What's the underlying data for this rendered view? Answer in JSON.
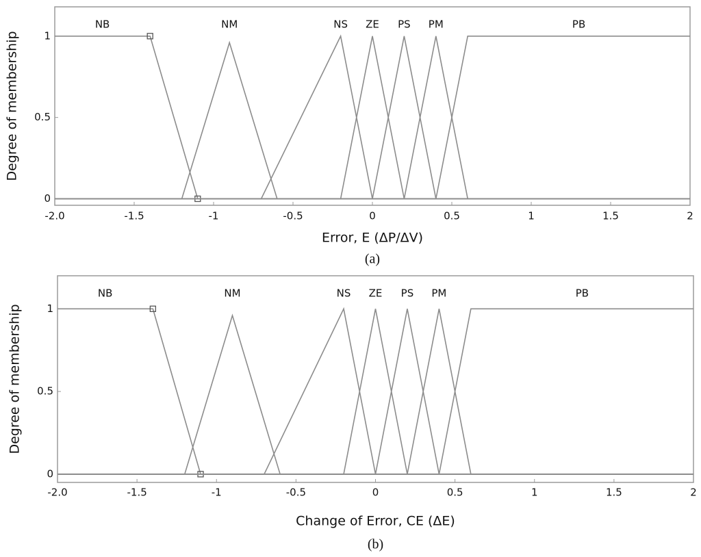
{
  "chart_data": [
    {
      "type": "line",
      "ylabel": "Degree of membership",
      "xlabel": "Error, E (ΔP/ΔV)",
      "caption": "(a)",
      "color": "#8c8c8c",
      "xlim": [
        -2,
        2
      ],
      "ylim": [
        -0.04,
        1.18
      ],
      "xticks": [
        {
          "value": -2,
          "label": "-2.0"
        },
        -1.5,
        -1,
        -0.5,
        0,
        0.5,
        1,
        1.5,
        2
      ],
      "yticks": [
        0,
        0.5,
        1
      ],
      "series": [
        {
          "name": "NB",
          "marker": "square",
          "x": [
            -2,
            -1.4,
            -1.1,
            2
          ],
          "values": [
            1,
            1,
            0,
            0
          ]
        },
        {
          "name": "NM",
          "x": [
            -2,
            -1.2,
            -0.9,
            -0.6,
            2
          ],
          "values": [
            0,
            0,
            0.96,
            0,
            0
          ]
        },
        {
          "name": "NS",
          "x": [
            -2,
            -0.7,
            -0.2,
            0,
            2
          ],
          "values": [
            0,
            0,
            1,
            0,
            0
          ]
        },
        {
          "name": "ZE",
          "x": [
            -2,
            -0.2,
            0,
            0.2,
            2
          ],
          "values": [
            0,
            0,
            1,
            0,
            0
          ]
        },
        {
          "name": "PS",
          "x": [
            -2,
            0,
            0.2,
            0.4,
            2
          ],
          "values": [
            0,
            0,
            1,
            0,
            0
          ]
        },
        {
          "name": "PM",
          "x": [
            -2,
            0.2,
            0.4,
            0.6,
            2
          ],
          "values": [
            0,
            0,
            1,
            0,
            0
          ]
        },
        {
          "name": "PB",
          "x": [
            -2,
            0.4,
            0.6,
            2
          ],
          "values": [
            0,
            0,
            1,
            1
          ]
        }
      ]
    },
    {
      "type": "line",
      "ylabel": "Degree of membership",
      "xlabel": "Change of Error, CE (ΔE)",
      "caption": "(b)",
      "color": "#8c8c8c",
      "xlim": [
        -2,
        2
      ],
      "ylim": [
        -0.05,
        1.2
      ],
      "xticks": [
        {
          "value": -2,
          "label": "-2.0"
        },
        -1.5,
        -1,
        -0.5,
        0,
        0.5,
        1,
        1.5,
        2
      ],
      "yticks": [
        0,
        0.5,
        1
      ],
      "series": [
        {
          "name": "NB",
          "marker": "square",
          "x": [
            -2,
            -1.4,
            -1.1,
            2
          ],
          "values": [
            1,
            1,
            0,
            0
          ]
        },
        {
          "name": "NM",
          "x": [
            -2,
            -1.2,
            -0.9,
            -0.6,
            2
          ],
          "values": [
            0,
            0,
            0.96,
            0,
            0
          ]
        },
        {
          "name": "NS",
          "x": [
            -2,
            -0.7,
            -0.2,
            0,
            2
          ],
          "values": [
            0,
            0,
            1,
            0,
            0
          ]
        },
        {
          "name": "ZE",
          "x": [
            -2,
            -0.2,
            0,
            0.2,
            2
          ],
          "values": [
            0,
            0,
            1,
            0,
            0
          ]
        },
        {
          "name": "PS",
          "x": [
            -2,
            0,
            0.2,
            0.4,
            2
          ],
          "values": [
            0,
            0,
            1,
            0,
            0
          ]
        },
        {
          "name": "PM",
          "x": [
            -2,
            0.2,
            0.4,
            0.6,
            2
          ],
          "values": [
            0,
            0,
            1,
            0,
            0
          ]
        },
        {
          "name": "PB",
          "x": [
            -2,
            0.4,
            0.6,
            2
          ],
          "values": [
            0,
            0,
            1,
            1
          ]
        }
      ]
    }
  ]
}
